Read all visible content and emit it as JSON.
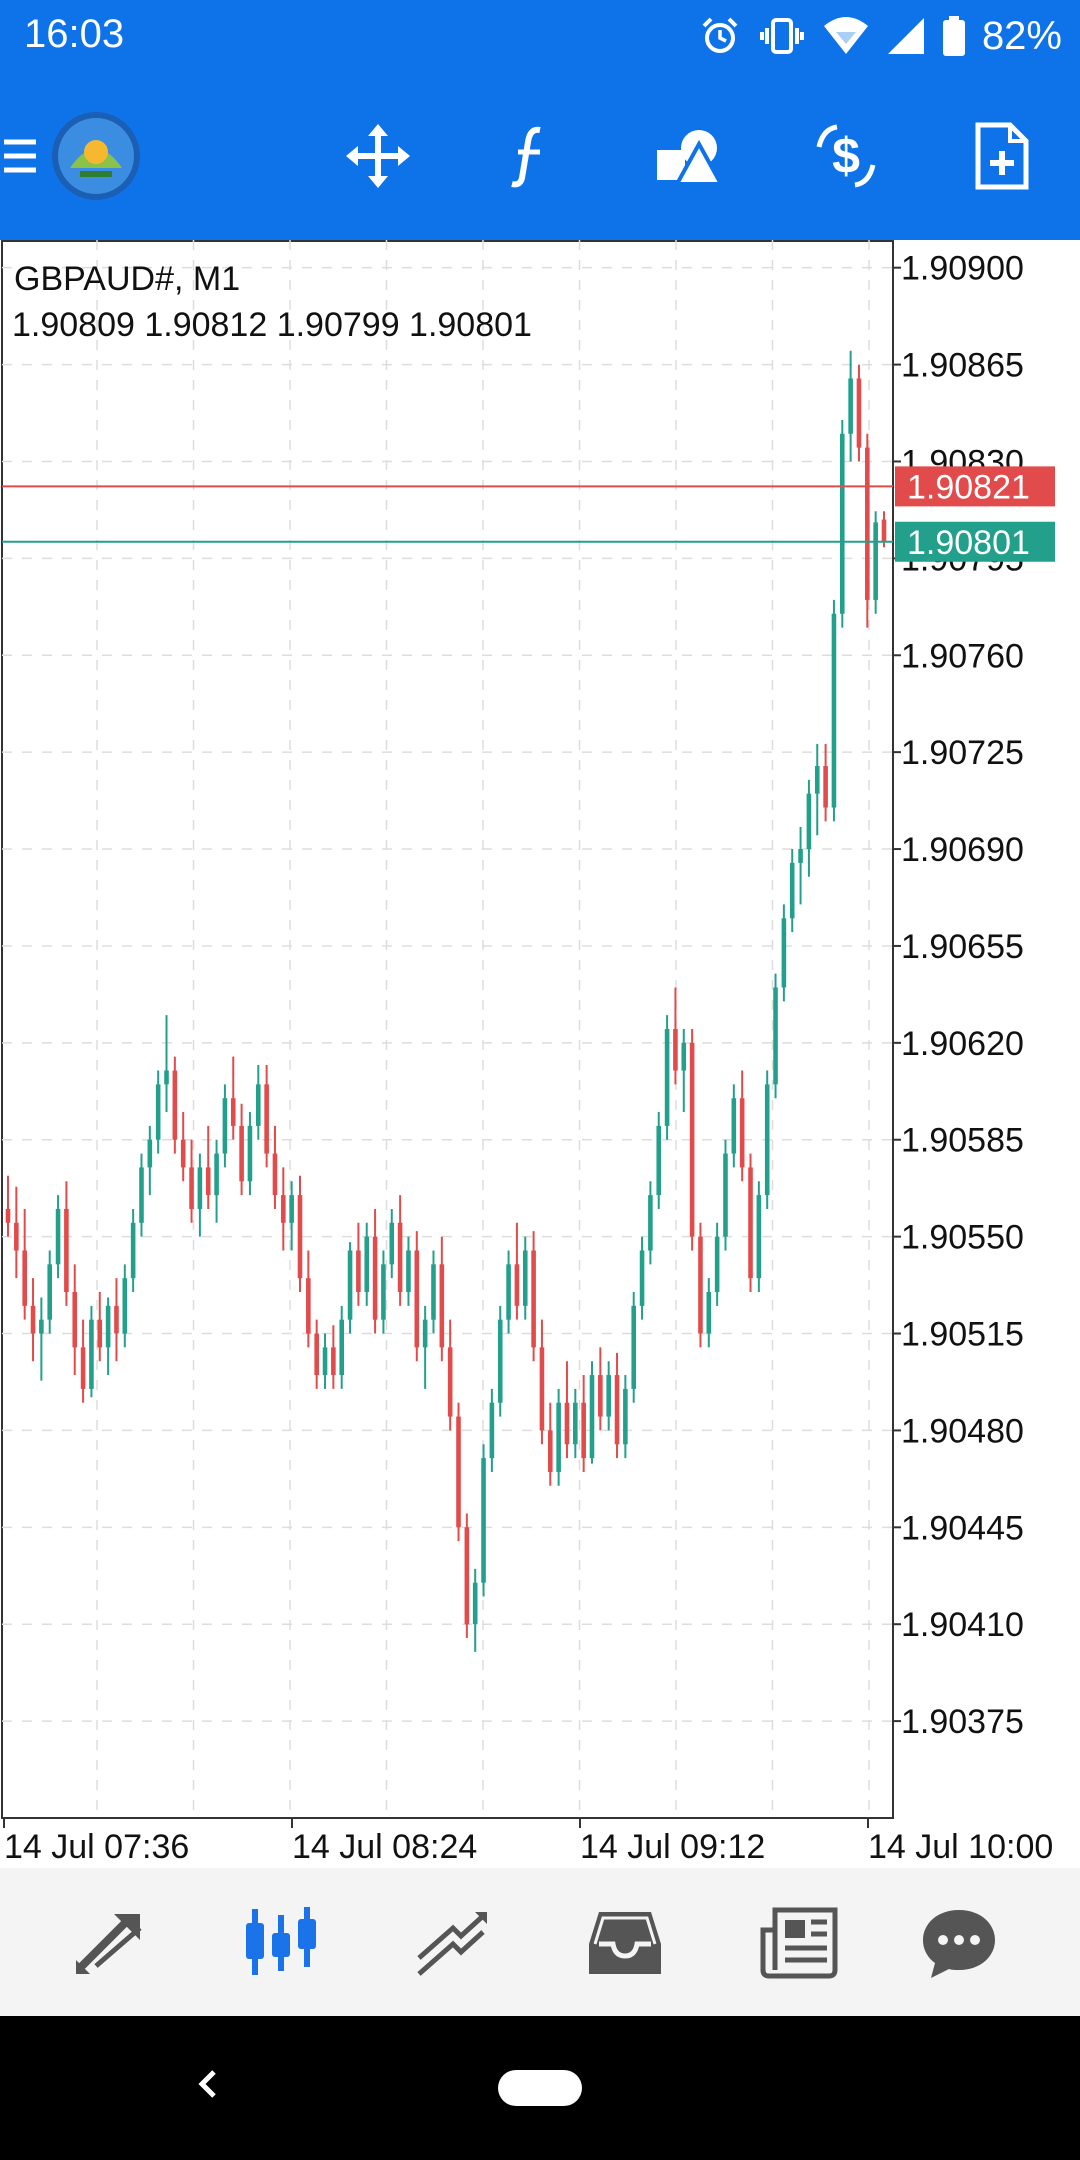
{
  "status_bar": {
    "time": "16:03",
    "battery": "82%",
    "icons": [
      "alarm-icon",
      "vibrate-icon",
      "wifi-icon",
      "signal-icon",
      "battery-icon"
    ]
  },
  "toolbar": {
    "buttons": [
      "menu-icon",
      "app-logo",
      "crosshair-icon",
      "indicators-icon",
      "objects-icon",
      "symbol-change-icon",
      "new-order-icon"
    ]
  },
  "chart": {
    "symbol": "GBPAUD#, M1",
    "ohlc": "1.90809 1.90812 1.90799 1.90801",
    "bid_price": "1.90801",
    "ask_price": "1.90821",
    "ask_color": "#e24b4b",
    "bid_color": "#23a08c"
  },
  "chart_data": {
    "type": "candlestick",
    "symbol": "GBPAUD#",
    "timeframe": "M1",
    "ylim": [
      1.9034,
      1.9091
    ],
    "y_ticks": [
      "1.90900",
      "1.90865",
      "1.90830",
      "1.90795",
      "1.90760",
      "1.90725",
      "1.90690",
      "1.90655",
      "1.90620",
      "1.90585",
      "1.90550",
      "1.90515",
      "1.90480",
      "1.90445",
      "1.90410",
      "1.90375"
    ],
    "x_labels": [
      "14 Jul 07:36",
      "14 Jul 08:24",
      "14 Jul 09:12",
      "14 Jul 10:00"
    ],
    "up_color": "#23a08c",
    "down_color": "#e24b4b",
    "candles": [
      [
        1.9056,
        1.90572,
        1.9055,
        1.90555
      ],
      [
        1.90555,
        1.90568,
        1.90535,
        1.90545
      ],
      [
        1.90545,
        1.9056,
        1.9052,
        1.90525
      ],
      [
        1.90525,
        1.90535,
        1.90505,
        1.90515
      ],
      [
        1.90515,
        1.90528,
        1.90498,
        1.9052
      ],
      [
        1.9052,
        1.90545,
        1.90515,
        1.9054
      ],
      [
        1.9054,
        1.90565,
        1.90535,
        1.9056
      ],
      [
        1.9056,
        1.9057,
        1.90525,
        1.9053
      ],
      [
        1.9053,
        1.9054,
        1.905,
        1.9051
      ],
      [
        1.9051,
        1.9052,
        1.9049,
        1.90495
      ],
      [
        1.90495,
        1.90525,
        1.90492,
        1.9052
      ],
      [
        1.9052,
        1.9053,
        1.90505,
        1.9051
      ],
      [
        1.9051,
        1.90528,
        1.905,
        1.90525
      ],
      [
        1.90525,
        1.90535,
        1.90505,
        1.90515
      ],
      [
        1.90515,
        1.9054,
        1.9051,
        1.90535
      ],
      [
        1.90535,
        1.9056,
        1.9053,
        1.90555
      ],
      [
        1.90555,
        1.9058,
        1.9055,
        1.90575
      ],
      [
        1.90575,
        1.9059,
        1.90565,
        1.90585
      ],
      [
        1.90585,
        1.9061,
        1.9058,
        1.90605
      ],
      [
        1.90605,
        1.9063,
        1.90595,
        1.9061
      ],
      [
        1.9061,
        1.90615,
        1.9058,
        1.90585
      ],
      [
        1.90585,
        1.90595,
        1.9057,
        1.90575
      ],
      [
        1.90575,
        1.90585,
        1.90555,
        1.9056
      ],
      [
        1.9056,
        1.9058,
        1.9055,
        1.90575
      ],
      [
        1.90575,
        1.9059,
        1.9056,
        1.90565
      ],
      [
        1.90565,
        1.90585,
        1.90555,
        1.9058
      ],
      [
        1.9058,
        1.90605,
        1.90575,
        1.906
      ],
      [
        1.906,
        1.90615,
        1.90585,
        1.9059
      ],
      [
        1.9059,
        1.90598,
        1.90565,
        1.9057
      ],
      [
        1.9057,
        1.90595,
        1.90565,
        1.9059
      ],
      [
        1.9059,
        1.90612,
        1.90585,
        1.90605
      ],
      [
        1.90605,
        1.90612,
        1.90575,
        1.9058
      ],
      [
        1.9058,
        1.9059,
        1.9056,
        1.90565
      ],
      [
        1.90565,
        1.90575,
        1.90545,
        1.90555
      ],
      [
        1.90555,
        1.9057,
        1.90545,
        1.90565
      ],
      [
        1.90565,
        1.90572,
        1.9053,
        1.90535
      ],
      [
        1.90535,
        1.90545,
        1.9051,
        1.90515
      ],
      [
        1.90515,
        1.9052,
        1.90495,
        1.905
      ],
      [
        1.905,
        1.90515,
        1.90495,
        1.9051
      ],
      [
        1.9051,
        1.90518,
        1.90495,
        1.905
      ],
      [
        1.905,
        1.90525,
        1.90495,
        1.9052
      ],
      [
        1.9052,
        1.90548,
        1.90515,
        1.90545
      ],
      [
        1.90545,
        1.90555,
        1.90525,
        1.9053
      ],
      [
        1.9053,
        1.90555,
        1.90525,
        1.9055
      ],
      [
        1.9055,
        1.9056,
        1.90515,
        1.9052
      ],
      [
        1.9052,
        1.90545,
        1.90515,
        1.9054
      ],
      [
        1.9054,
        1.9056,
        1.90535,
        1.90555
      ],
      [
        1.90555,
        1.90565,
        1.90525,
        1.9053
      ],
      [
        1.9053,
        1.9055,
        1.90525,
        1.90545
      ],
      [
        1.90545,
        1.90552,
        1.90505,
        1.9051
      ],
      [
        1.9051,
        1.90525,
        1.90495,
        1.9052
      ],
      [
        1.9052,
        1.90545,
        1.90515,
        1.9054
      ],
      [
        1.9054,
        1.9055,
        1.90505,
        1.9051
      ],
      [
        1.9051,
        1.9052,
        1.9048,
        1.90485
      ],
      [
        1.90485,
        1.9049,
        1.9044,
        1.90445
      ],
      [
        1.90445,
        1.9045,
        1.90405,
        1.9041
      ],
      [
        1.9041,
        1.9043,
        1.904,
        1.90425
      ],
      [
        1.90425,
        1.90475,
        1.9042,
        1.9047
      ],
      [
        1.9047,
        1.90495,
        1.90465,
        1.9049
      ],
      [
        1.9049,
        1.90525,
        1.90485,
        1.9052
      ],
      [
        1.9052,
        1.90545,
        1.90515,
        1.9054
      ],
      [
        1.9054,
        1.90555,
        1.9052,
        1.90525
      ],
      [
        1.90525,
        1.9055,
        1.9052,
        1.90545
      ],
      [
        1.90545,
        1.90552,
        1.90505,
        1.9051
      ],
      [
        1.9051,
        1.9052,
        1.90475,
        1.9048
      ],
      [
        1.9048,
        1.9049,
        1.9046,
        1.90465
      ],
      [
        1.90465,
        1.90495,
        1.9046,
        1.9049
      ],
      [
        1.9049,
        1.90505,
        1.9047,
        1.90475
      ],
      [
        1.90475,
        1.90495,
        1.9047,
        1.9049
      ],
      [
        1.9049,
        1.905,
        1.90465,
        1.9047
      ],
      [
        1.9047,
        1.90505,
        1.90468,
        1.905
      ],
      [
        1.905,
        1.9051,
        1.9048,
        1.90485
      ],
      [
        1.90485,
        1.90505,
        1.9048,
        1.905
      ],
      [
        1.905,
        1.90508,
        1.9047,
        1.90475
      ],
      [
        1.90475,
        1.905,
        1.9047,
        1.90495
      ],
      [
        1.90495,
        1.9053,
        1.9049,
        1.90525
      ],
      [
        1.90525,
        1.9055,
        1.9052,
        1.90545
      ],
      [
        1.90545,
        1.9057,
        1.9054,
        1.90565
      ],
      [
        1.90565,
        1.90595,
        1.9056,
        1.9059
      ],
      [
        1.9059,
        1.9063,
        1.90585,
        1.90625
      ],
      [
        1.90625,
        1.9064,
        1.90605,
        1.9061
      ],
      [
        1.9061,
        1.90625,
        1.90595,
        1.9062
      ],
      [
        1.9062,
        1.90625,
        1.90545,
        1.9055
      ],
      [
        1.9055,
        1.90555,
        1.9051,
        1.90515
      ],
      [
        1.90515,
        1.90535,
        1.9051,
        1.9053
      ],
      [
        1.9053,
        1.90555,
        1.90525,
        1.9055
      ],
      [
        1.9055,
        1.90585,
        1.90545,
        1.9058
      ],
      [
        1.9058,
        1.90605,
        1.90575,
        1.906
      ],
      [
        1.906,
        1.9061,
        1.9057,
        1.90575
      ],
      [
        1.90575,
        1.9058,
        1.9053,
        1.90535
      ],
      [
        1.90535,
        1.9057,
        1.9053,
        1.90565
      ],
      [
        1.90565,
        1.9061,
        1.9056,
        1.90605
      ],
      [
        1.90605,
        1.90645,
        1.906,
        1.9064
      ],
      [
        1.9064,
        1.9067,
        1.90635,
        1.90665
      ],
      [
        1.90665,
        1.9069,
        1.9066,
        1.90685
      ],
      [
        1.90685,
        1.90698,
        1.9067,
        1.9069
      ],
      [
        1.9069,
        1.90715,
        1.9068,
        1.9071
      ],
      [
        1.9071,
        1.90728,
        1.90695,
        1.9072
      ],
      [
        1.9072,
        1.90728,
        1.907,
        1.90705
      ],
      [
        1.90705,
        1.9078,
        1.907,
        1.90775
      ],
      [
        1.90775,
        1.90845,
        1.9077,
        1.9084
      ],
      [
        1.9084,
        1.9087,
        1.9083,
        1.9086
      ],
      [
        1.9086,
        1.90865,
        1.9083,
        1.90835
      ],
      [
        1.90835,
        1.9084,
        1.9077,
        1.9078
      ],
      [
        1.9078,
        1.90812,
        1.90775,
        1.90808
      ],
      [
        1.90809,
        1.90812,
        1.90799,
        1.90801
      ]
    ]
  },
  "bottom_nav": {
    "items": [
      "quotes-icon",
      "chart-icon",
      "trade-icon",
      "history-icon",
      "news-icon",
      "chat-icon"
    ],
    "active_color": "#1a73e8",
    "inactive_color": "#555555"
  }
}
